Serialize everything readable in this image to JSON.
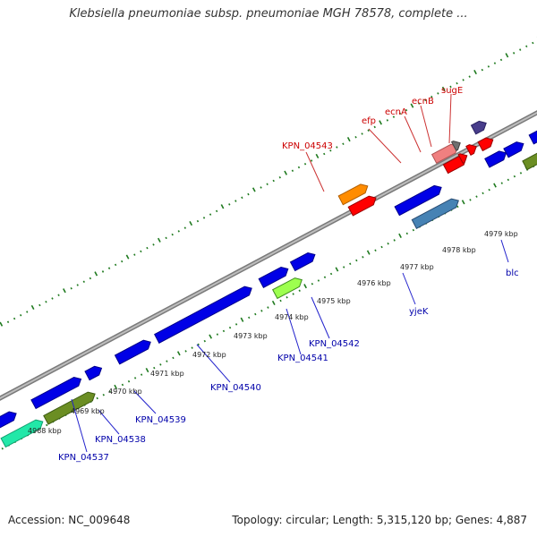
{
  "title": "Klebsiella pneumoniae subsp. pneumoniae MGH 78578, complete ...",
  "accession_label": "Accession: NC_009648",
  "topology_label": "Topology: circular; Length: 5,315,120 bp; Genes: 4,887",
  "colors": {
    "backbone": "#8f8f8f",
    "tick": "#1f7a1f",
    "label_top": "#cc0000",
    "label_bottom": "#0000aa",
    "leader": "#2222cc",
    "leader_top": "#cc3333"
  },
  "kbp_ticks": [
    {
      "text": "4968 kbp"
    },
    {
      "text": "4969 kbp"
    },
    {
      "text": "4970 kbp"
    },
    {
      "text": "4971 kbp"
    },
    {
      "text": "4972 kbp"
    },
    {
      "text": "4973 kbp"
    },
    {
      "text": "4974 kbp"
    },
    {
      "text": "4975 kbp"
    },
    {
      "text": "4976 kbp"
    },
    {
      "text": "4977 kbp"
    },
    {
      "text": "4978 kbp"
    },
    {
      "text": "4979 kbp"
    }
  ],
  "gene_labels_top": [
    {
      "text": "KPN_04543"
    },
    {
      "text": "efp"
    },
    {
      "text": "ecnA"
    },
    {
      "text": "ecnB"
    },
    {
      "text": "sugE"
    }
  ],
  "gene_labels_bottom": [
    {
      "text": "KPN_04537"
    },
    {
      "text": "KPN_04538"
    },
    {
      "text": "KPN_04539"
    },
    {
      "text": "KPN_04540"
    },
    {
      "text": "KPN_04541"
    },
    {
      "text": "KPN_04542"
    },
    {
      "text": "yjeK"
    },
    {
      "text": "blc"
    }
  ]
}
